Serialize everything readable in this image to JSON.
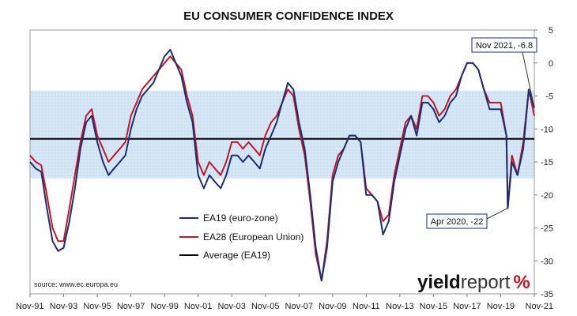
{
  "chart_data": {
    "type": "line",
    "title": "EU CONSUMER CONFIDENCE INDEX",
    "source": "source: www.ec.europa.eu",
    "logo": {
      "part1": "yield",
      "part2": "report",
      "part3": "%"
    },
    "ylim": [
      -35,
      5
    ],
    "yticks": [
      5,
      0,
      -5,
      -10,
      -15,
      -20,
      -25,
      -30,
      -35
    ],
    "y_axis_side": "right",
    "x_tick_labels": [
      "Nov-91",
      "Nov-93",
      "Nov-95",
      "Nov-97",
      "Nov-99",
      "Nov-01",
      "Nov-03",
      "Nov-05",
      "Nov-07",
      "Nov-09",
      "Nov-11",
      "Nov-13",
      "Nov-15",
      "Nov-17",
      "Nov-19",
      "Nov-21"
    ],
    "x_range": [
      1991.83,
      2021.83
    ],
    "shaded_band": {
      "from": -17.5,
      "to": -4.2,
      "color": "#d5e7f7"
    },
    "average": {
      "name": "Average (EA19)",
      "value": -11.5,
      "color": "#000000"
    },
    "series": [
      {
        "name": "EA19 (euro-zone)",
        "color": "#1b2f6e",
        "points": [
          [
            1991.83,
            -15
          ],
          [
            1992.17,
            -16
          ],
          [
            1992.5,
            -16.5
          ],
          [
            1992.83,
            -22
          ],
          [
            1993.17,
            -27
          ],
          [
            1993.5,
            -28.5
          ],
          [
            1993.83,
            -28
          ],
          [
            1994.17,
            -24
          ],
          [
            1994.5,
            -19
          ],
          [
            1994.83,
            -13
          ],
          [
            1995.17,
            -9
          ],
          [
            1995.5,
            -8
          ],
          [
            1995.83,
            -12
          ],
          [
            1996.17,
            -15
          ],
          [
            1996.5,
            -17
          ],
          [
            1996.83,
            -16
          ],
          [
            1997.17,
            -15
          ],
          [
            1997.5,
            -14
          ],
          [
            1997.83,
            -10
          ],
          [
            1998.17,
            -7
          ],
          [
            1998.5,
            -5
          ],
          [
            1998.83,
            -4
          ],
          [
            1999.17,
            -3
          ],
          [
            1999.5,
            -1
          ],
          [
            1999.83,
            1
          ],
          [
            2000.17,
            2
          ],
          [
            2000.5,
            0
          ],
          [
            2000.83,
            -2
          ],
          [
            2001.17,
            -6
          ],
          [
            2001.5,
            -9
          ],
          [
            2001.83,
            -17
          ],
          [
            2002.17,
            -19
          ],
          [
            2002.5,
            -17
          ],
          [
            2002.83,
            -18
          ],
          [
            2003.17,
            -19
          ],
          [
            2003.5,
            -17
          ],
          [
            2003.83,
            -14
          ],
          [
            2004.17,
            -14
          ],
          [
            2004.5,
            -15
          ],
          [
            2004.83,
            -14
          ],
          [
            2005.17,
            -15
          ],
          [
            2005.5,
            -16
          ],
          [
            2005.83,
            -13
          ],
          [
            2006.17,
            -11
          ],
          [
            2006.5,
            -9
          ],
          [
            2006.83,
            -6
          ],
          [
            2007.17,
            -3
          ],
          [
            2007.5,
            -4
          ],
          [
            2007.83,
            -9
          ],
          [
            2008.17,
            -13
          ],
          [
            2008.5,
            -20
          ],
          [
            2008.83,
            -28
          ],
          [
            2009.17,
            -33
          ],
          [
            2009.5,
            -28
          ],
          [
            2009.83,
            -18
          ],
          [
            2010.17,
            -15
          ],
          [
            2010.5,
            -13
          ],
          [
            2010.83,
            -11
          ],
          [
            2011.17,
            -11
          ],
          [
            2011.5,
            -12
          ],
          [
            2011.83,
            -20
          ],
          [
            2012.17,
            -20
          ],
          [
            2012.5,
            -21
          ],
          [
            2012.83,
            -26
          ],
          [
            2013.17,
            -24
          ],
          [
            2013.5,
            -18
          ],
          [
            2013.83,
            -14
          ],
          [
            2014.17,
            -10
          ],
          [
            2014.5,
            -8
          ],
          [
            2014.83,
            -11
          ],
          [
            2015.17,
            -6
          ],
          [
            2015.5,
            -6
          ],
          [
            2015.83,
            -7
          ],
          [
            2016.17,
            -9
          ],
          [
            2016.5,
            -8
          ],
          [
            2016.83,
            -6
          ],
          [
            2017.17,
            -5
          ],
          [
            2017.5,
            -2
          ],
          [
            2017.83,
            0
          ],
          [
            2018.17,
            0
          ],
          [
            2018.5,
            -1
          ],
          [
            2018.83,
            -4
          ],
          [
            2019.17,
            -7
          ],
          [
            2019.5,
            -7
          ],
          [
            2019.83,
            -7
          ],
          [
            2020.17,
            -11
          ],
          [
            2020.25,
            -22
          ],
          [
            2020.5,
            -15
          ],
          [
            2020.83,
            -17
          ],
          [
            2021.17,
            -13
          ],
          [
            2021.5,
            -4
          ],
          [
            2021.83,
            -6.8
          ]
        ]
      },
      {
        "name": "EA28 (European Union)",
        "color": "#c0162a",
        "points": [
          [
            1991.83,
            -14
          ],
          [
            1992.17,
            -15
          ],
          [
            1992.5,
            -15.5
          ],
          [
            1992.83,
            -20
          ],
          [
            1993.17,
            -25
          ],
          [
            1993.5,
            -27
          ],
          [
            1993.83,
            -27
          ],
          [
            1994.17,
            -22
          ],
          [
            1994.5,
            -17
          ],
          [
            1994.83,
            -12
          ],
          [
            1995.17,
            -8
          ],
          [
            1995.5,
            -7
          ],
          [
            1995.83,
            -11
          ],
          [
            1996.17,
            -13
          ],
          [
            1996.5,
            -15
          ],
          [
            1996.83,
            -14
          ],
          [
            1997.17,
            -13
          ],
          [
            1997.5,
            -12
          ],
          [
            1997.83,
            -8
          ],
          [
            1998.17,
            -6
          ],
          [
            1998.5,
            -4
          ],
          [
            1998.83,
            -3
          ],
          [
            1999.17,
            -2
          ],
          [
            1999.5,
            -1
          ],
          [
            1999.83,
            0
          ],
          [
            2000.17,
            1
          ],
          [
            2000.5,
            0
          ],
          [
            2000.83,
            -1
          ],
          [
            2001.17,
            -5
          ],
          [
            2001.5,
            -8
          ],
          [
            2001.83,
            -15
          ],
          [
            2002.17,
            -17
          ],
          [
            2002.5,
            -15
          ],
          [
            2002.83,
            -16
          ],
          [
            2003.17,
            -17
          ],
          [
            2003.5,
            -15
          ],
          [
            2003.83,
            -12
          ],
          [
            2004.17,
            -12
          ],
          [
            2004.5,
            -13
          ],
          [
            2004.83,
            -12
          ],
          [
            2005.17,
            -13
          ],
          [
            2005.5,
            -14
          ],
          [
            2005.83,
            -11
          ],
          [
            2006.17,
            -9
          ],
          [
            2006.5,
            -8
          ],
          [
            2006.83,
            -6
          ],
          [
            2007.17,
            -4
          ],
          [
            2007.5,
            -5
          ],
          [
            2007.83,
            -10
          ],
          [
            2008.17,
            -14
          ],
          [
            2008.5,
            -21
          ],
          [
            2008.83,
            -29
          ],
          [
            2009.17,
            -33
          ],
          [
            2009.5,
            -27
          ],
          [
            2009.83,
            -17
          ],
          [
            2010.17,
            -14
          ],
          [
            2010.5,
            -13
          ],
          [
            2010.83,
            -11
          ],
          [
            2011.17,
            -11
          ],
          [
            2011.5,
            -12
          ],
          [
            2011.83,
            -19
          ],
          [
            2012.17,
            -20
          ],
          [
            2012.5,
            -21
          ],
          [
            2012.83,
            -24
          ],
          [
            2013.17,
            -23
          ],
          [
            2013.5,
            -17
          ],
          [
            2013.83,
            -13
          ],
          [
            2014.17,
            -9
          ],
          [
            2014.5,
            -8
          ],
          [
            2014.83,
            -10
          ],
          [
            2015.17,
            -5
          ],
          [
            2015.5,
            -5
          ],
          [
            2015.83,
            -6
          ],
          [
            2016.17,
            -8
          ],
          [
            2016.5,
            -7
          ],
          [
            2016.83,
            -5
          ],
          [
            2017.17,
            -4
          ],
          [
            2017.5,
            -2
          ],
          [
            2017.83,
            0
          ],
          [
            2018.17,
            0
          ],
          [
            2018.5,
            -1
          ],
          [
            2018.83,
            -4
          ],
          [
            2019.17,
            -6
          ],
          [
            2019.5,
            -6
          ],
          [
            2019.83,
            -6
          ],
          [
            2020.17,
            -11
          ],
          [
            2020.25,
            -22
          ],
          [
            2020.5,
            -14
          ],
          [
            2020.83,
            -17
          ],
          [
            2021.17,
            -12
          ],
          [
            2021.5,
            -4
          ],
          [
            2021.83,
            -8
          ]
        ]
      }
    ],
    "annotations": [
      {
        "text": "Nov 2021, -6.8",
        "x": 2021.83,
        "y": -6.8
      },
      {
        "text": "Apr 2020, -22",
        "x": 2020.25,
        "y": -22
      }
    ],
    "legend": {
      "placement": "lower-middle",
      "entries": [
        "EA19 (euro-zone)",
        "EA28 (European Union)",
        "Average (EA19)"
      ]
    }
  }
}
